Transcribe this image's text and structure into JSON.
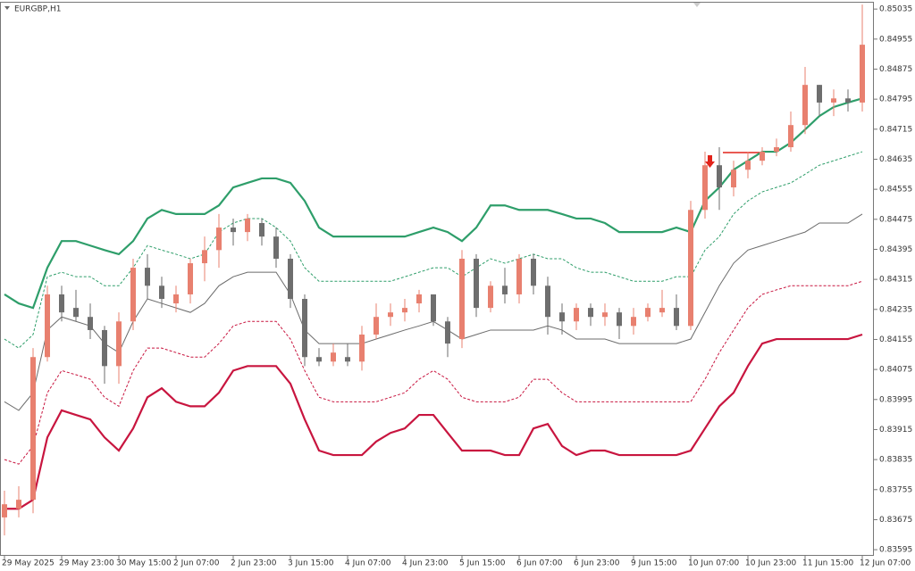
{
  "chart_data": {
    "type": "candlestick",
    "title": "EURGBP,H1",
    "categories": [
      "29 May 2025",
      null,
      null,
      null,
      "29 May 23:00",
      null,
      null,
      null,
      "30 May 15:00",
      null,
      null,
      null,
      "2 Jun 07:00",
      null,
      null,
      null,
      "2 Jun 23:00",
      null,
      null,
      null,
      "3 Jun 15:00",
      null,
      null,
      null,
      "4 Jun 07:00",
      null,
      null,
      null,
      "4 Jun 23:00",
      null,
      null,
      null,
      "5 Jun 15:00",
      null,
      null,
      null,
      "6 Jun 07:00",
      null,
      null,
      null,
      "6 Jun 23:00",
      null,
      null,
      null,
      "9 Jun 15:00",
      null,
      null,
      null,
      "10 Jun 07:00",
      null,
      null,
      null,
      "10 Jun 23:00",
      null,
      null,
      null,
      "11 Jun 15:00",
      null,
      null,
      null,
      "12 Jun 07:00"
    ],
    "open": [
      0.83681,
      0.83704,
      0.83728,
      0.84108,
      0.84275,
      0.84239,
      0.84215,
      0.8418,
      0.84084,
      0.84203,
      0.84346,
      0.84298,
      0.84251,
      0.84275,
      0.84358,
      0.84393,
      0.84453,
      0.84441,
      0.84465,
      0.84429,
      0.8437,
      0.84263,
      0.84108,
      0.84096,
      0.84108,
      0.84096,
      0.84168,
      0.84215,
      0.84227,
      0.84251,
      0.84275,
      0.84203,
      0.84156,
      0.8437,
      0.84239,
      0.84298,
      0.84275,
      0.8437,
      0.84298,
      0.84227,
      0.84203,
      0.84239,
      0.84215,
      0.84227,
      0.84191,
      0.84215,
      0.84227,
      0.84239,
      0.84191,
      0.845,
      0.84619,
      0.8456,
      0.84607,
      0.84631,
      0.84655,
      0.84667,
      0.84726,
      0.84833,
      0.84786,
      0.84797,
      0.84786
    ],
    "high": [
      0.83752,
      0.83764,
      0.84132,
      0.84298,
      0.84298,
      0.84287,
      0.84251,
      0.84191,
      0.84227,
      0.8437,
      0.84382,
      0.84322,
      0.84298,
      0.8437,
      0.84429,
      0.84489,
      0.84477,
      0.84489,
      0.84477,
      0.84453,
      0.84382,
      0.84275,
      0.84132,
      0.84144,
      0.84144,
      0.84191,
      0.84251,
      0.84251,
      0.84263,
      0.84287,
      0.84275,
      0.84215,
      0.84393,
      0.84382,
      0.8431,
      0.84346,
      0.84382,
      0.84382,
      0.84322,
      0.84251,
      0.84251,
      0.84251,
      0.84251,
      0.84239,
      0.84239,
      0.84251,
      0.84287,
      0.84275,
      0.84524,
      0.84655,
      0.84667,
      0.84631,
      0.84655,
      0.84667,
      0.8469,
      0.84762,
      0.84881,
      0.84833,
      0.84821,
      0.84821,
      0.85047
    ],
    "low": [
      0.83633,
      0.83681,
      0.83692,
      0.84096,
      0.84203,
      0.84203,
      0.84156,
      0.84037,
      0.84037,
      0.8418,
      0.84263,
      0.84239,
      0.84227,
      0.84251,
      0.8431,
      0.84346,
      0.84405,
      0.84417,
      0.84405,
      0.84346,
      0.84239,
      0.84084,
      0.84084,
      0.84084,
      0.84084,
      0.84072,
      0.84156,
      0.84191,
      0.84203,
      0.84227,
      0.84191,
      0.84108,
      0.84132,
      0.84215,
      0.84227,
      0.84251,
      0.84251,
      0.84275,
      0.84168,
      0.84168,
      0.8418,
      0.84191,
      0.84191,
      0.84156,
      0.84168,
      0.84203,
      0.84215,
      0.8418,
      0.8418,
      0.84477,
      0.845,
      0.84536,
      0.84584,
      0.84619,
      0.84643,
      0.84655,
      0.84702,
      0.8475,
      0.8475,
      0.84762,
      0.84762
    ],
    "close": [
      0.83716,
      0.83728,
      0.84108,
      0.84275,
      0.84227,
      0.84215,
      0.8418,
      0.84084,
      0.84203,
      0.84346,
      0.84298,
      0.84263,
      0.84275,
      0.84358,
      0.84393,
      0.84453,
      0.84441,
      0.84477,
      0.84429,
      0.8437,
      0.84263,
      0.84108,
      0.84096,
      0.8412,
      0.84096,
      0.84168,
      0.84215,
      0.84227,
      0.84239,
      0.84275,
      0.84203,
      0.84144,
      0.8437,
      0.84239,
      0.84298,
      0.84275,
      0.8437,
      0.84298,
      0.84215,
      0.84203,
      0.84239,
      0.84215,
      0.84227,
      0.84191,
      0.84215,
      0.84239,
      0.84239,
      0.84191,
      0.845,
      0.84619,
      0.8456,
      0.84607,
      0.84631,
      0.84655,
      0.84667,
      0.84726,
      0.84833,
      0.84786,
      0.84797,
      0.84786,
      0.8494
    ],
    "up_color": "#e8806f",
    "down_color": "#6e6e6e",
    "series": [
      {
        "color": "#2e9e6a",
        "style": "solid",
        "width": 2.2,
        "values": [
          0.84275,
          0.84251,
          0.84239,
          0.84346,
          0.84417,
          0.84417,
          0.84405,
          0.84393,
          0.84382,
          0.84417,
          0.84477,
          0.845,
          0.84489,
          0.84489,
          0.84489,
          0.84512,
          0.8456,
          0.84572,
          0.84584,
          0.84584,
          0.84572,
          0.84524,
          0.84453,
          0.84429,
          0.84429,
          0.84429,
          0.84429,
          0.84429,
          0.84429,
          0.84441,
          0.84453,
          0.84441,
          0.84417,
          0.84453,
          0.84512,
          0.84512,
          0.845,
          0.845,
          0.845,
          0.84489,
          0.84477,
          0.84477,
          0.84465,
          0.84441,
          0.84441,
          0.84441,
          0.84441,
          0.84453,
          0.84441,
          0.84524,
          0.8456,
          0.84607,
          0.84631,
          0.84655,
          0.84655,
          0.84679,
          0.84714,
          0.8475,
          0.84774,
          0.84786,
          0.84797
        ]
      },
      {
        "color": "#2e9e6a",
        "style": "dashed",
        "width": 1,
        "values": [
          0.84156,
          0.84132,
          0.84168,
          0.84322,
          0.84334,
          0.84322,
          0.84322,
          0.84298,
          0.84298,
          0.84346,
          0.84405,
          0.84393,
          0.84382,
          0.8437,
          0.84382,
          0.84441,
          0.84465,
          0.84477,
          0.84477,
          0.84453,
          0.84417,
          0.84346,
          0.8431,
          0.8431,
          0.8431,
          0.8431,
          0.8431,
          0.8431,
          0.84322,
          0.84334,
          0.84346,
          0.84346,
          0.84322,
          0.84346,
          0.8437,
          0.84358,
          0.8437,
          0.84382,
          0.8437,
          0.8437,
          0.84346,
          0.84334,
          0.84334,
          0.84322,
          0.8431,
          0.8431,
          0.8431,
          0.84322,
          0.84322,
          0.84393,
          0.84429,
          0.84489,
          0.84524,
          0.84548,
          0.8456,
          0.84572,
          0.84595,
          0.84619,
          0.84631,
          0.84643,
          0.84655
        ]
      },
      {
        "color": "#6b6b6b",
        "style": "solid",
        "width": 1,
        "values": [
          0.83989,
          0.83966,
          0.84013,
          0.8418,
          0.84215,
          0.84203,
          0.84191,
          0.84144,
          0.8412,
          0.84203,
          0.84263,
          0.84251,
          0.84239,
          0.84227,
          0.84251,
          0.84298,
          0.84322,
          0.84334,
          0.84334,
          0.84334,
          0.84275,
          0.8418,
          0.84144,
          0.84144,
          0.84144,
          0.84144,
          0.84156,
          0.84168,
          0.8418,
          0.84191,
          0.84203,
          0.8418,
          0.84156,
          0.84168,
          0.8418,
          0.8418,
          0.8418,
          0.8418,
          0.84191,
          0.8418,
          0.84156,
          0.84156,
          0.84156,
          0.84144,
          0.84144,
          0.84144,
          0.84144,
          0.84144,
          0.84156,
          0.84227,
          0.84298,
          0.84358,
          0.84393,
          0.84405,
          0.84417,
          0.84429,
          0.84441,
          0.84465,
          0.84465,
          0.84465,
          0.84489
        ]
      },
      {
        "color": "#c8153f",
        "style": "dashed",
        "width": 1,
        "values": [
          0.83835,
          0.83823,
          0.83871,
          0.84013,
          0.84072,
          0.84061,
          0.84049,
          0.84001,
          0.83977,
          0.84072,
          0.84132,
          0.84132,
          0.8412,
          0.84108,
          0.84108,
          0.84144,
          0.84191,
          0.84203,
          0.84203,
          0.84203,
          0.84156,
          0.84072,
          0.84001,
          0.83989,
          0.83989,
          0.83989,
          0.83989,
          0.84001,
          0.84013,
          0.84049,
          0.84072,
          0.84049,
          0.84001,
          0.83989,
          0.83989,
          0.83989,
          0.84001,
          0.84049,
          0.84049,
          0.84013,
          0.83989,
          0.83989,
          0.83989,
          0.83989,
          0.83989,
          0.83989,
          0.83989,
          0.83989,
          0.83989,
          0.84049,
          0.8412,
          0.8418,
          0.84239,
          0.84275,
          0.84287,
          0.84298,
          0.84298,
          0.84298,
          0.84298,
          0.84298,
          0.8431
        ]
      },
      {
        "color": "#c8153f",
        "style": "solid",
        "width": 2.2,
        "values": [
          0.83704,
          0.83704,
          0.83728,
          0.83894,
          0.83966,
          0.83954,
          0.83942,
          0.83894,
          0.83859,
          0.83918,
          0.84001,
          0.84025,
          0.83989,
          0.83977,
          0.83977,
          0.84013,
          0.84072,
          0.84084,
          0.84084,
          0.84084,
          0.84037,
          0.83942,
          0.83859,
          0.83847,
          0.83847,
          0.83847,
          0.83883,
          0.83906,
          0.83918,
          0.83954,
          0.83954,
          0.83906,
          0.83859,
          0.83859,
          0.83859,
          0.83847,
          0.83847,
          0.83918,
          0.8393,
          0.83871,
          0.83847,
          0.83859,
          0.83859,
          0.83847,
          0.83847,
          0.83847,
          0.83847,
          0.83847,
          0.83859,
          0.83918,
          0.83977,
          0.84013,
          0.84084,
          0.84144,
          0.84156,
          0.84156,
          0.84156,
          0.84156,
          0.84156,
          0.84156,
          0.84168
        ]
      }
    ],
    "ylim": [
      0.83581,
      0.85052
    ],
    "yticks": [
      0.85035,
      0.84955,
      0.84875,
      0.84795,
      0.84715,
      0.84635,
      0.84555,
      0.84475,
      0.84395,
      0.84315,
      0.84235,
      0.84155,
      0.84075,
      0.83995,
      0.83915,
      0.83835,
      0.83755,
      0.83675,
      0.83595
    ]
  }
}
